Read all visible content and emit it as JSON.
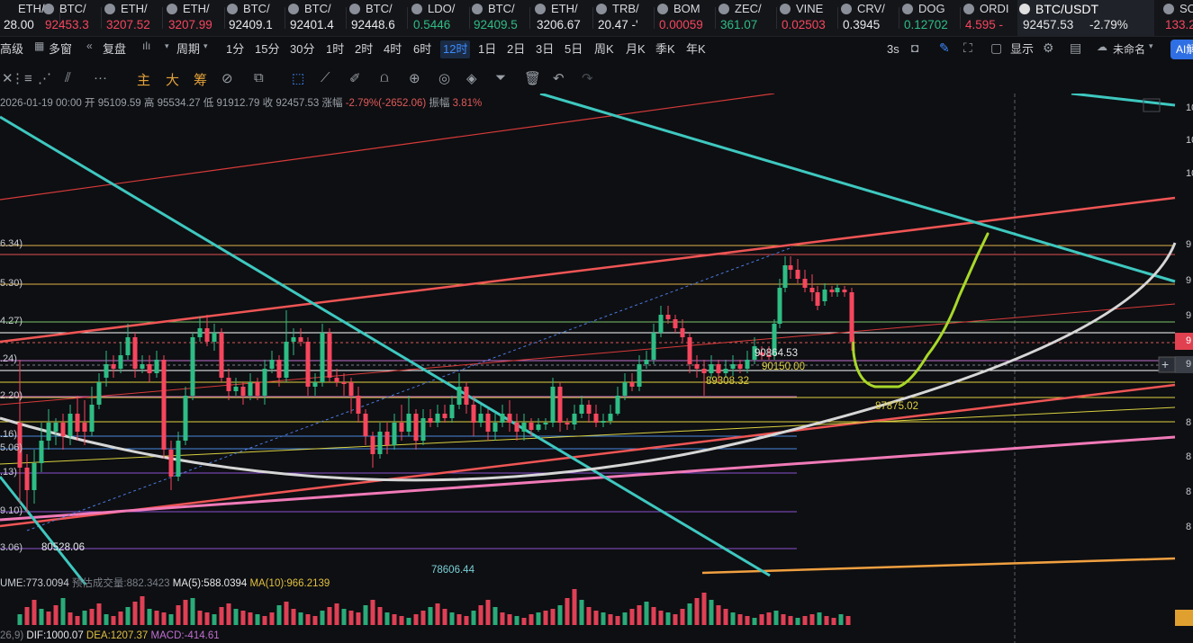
{
  "ticker": [
    {
      "symbol": "ETH/",
      "price": "28.00",
      "color": "wh"
    },
    {
      "symbol": "BTC/",
      "price": "92453.3",
      "color": "dn"
    },
    {
      "symbol": "ETH/",
      "price": "3207.52",
      "color": "dn"
    },
    {
      "symbol": "ETH/",
      "price": "3207.99",
      "color": "dn"
    },
    {
      "symbol": "BTC/",
      "price": "92409.1",
      "color": "wh"
    },
    {
      "symbol": "BTC/",
      "price": "92401.4",
      "color": "wh"
    },
    {
      "symbol": "BTC/",
      "price": "92448.6",
      "color": "wh"
    },
    {
      "symbol": "LDO/",
      "price": "0.5446",
      "color": "up"
    },
    {
      "symbol": "BTC/",
      "price": "92409.5",
      "color": "up"
    },
    {
      "symbol": "ETH/",
      "price": "3206.67",
      "color": "wh"
    },
    {
      "symbol": "TRB/",
      "price": "20.47 -'",
      "color": "wh"
    },
    {
      "symbol": "BOM",
      "price": "0.00059",
      "color": "dn"
    },
    {
      "symbol": "ZEC/",
      "price": "361.07",
      "color": "up"
    },
    {
      "symbol": "VINE",
      "price": "0.02503",
      "color": "dn"
    },
    {
      "symbol": "CRV/",
      "price": "0.3945",
      "color": "wh"
    },
    {
      "symbol": "DOG",
      "price": "0.12702",
      "color": "up"
    },
    {
      "symbol": "ORDI",
      "price": "4.595 -",
      "color": "dn"
    }
  ],
  "active_ticker": {
    "symbol": "BTC/USDT",
    "price": "92457.53",
    "change": "-2.79%"
  },
  "ticker_tail": {
    "symbol": "SO",
    "price": "133.2"
  },
  "toolbar1": {
    "items": [
      {
        "label": "高级",
        "active": false
      },
      {
        "label": "多窗",
        "active": false
      },
      {
        "label": "复盘",
        "active": false
      },
      {
        "label": "周期",
        "active": false
      },
      {
        "label": "1分",
        "active": false
      },
      {
        "label": "15分",
        "active": false
      },
      {
        "label": "30分",
        "active": false
      },
      {
        "label": "1时",
        "active": false
      },
      {
        "label": "2时",
        "active": false
      },
      {
        "label": "4时",
        "active": false
      },
      {
        "label": "6时",
        "active": false
      },
      {
        "label": "12时",
        "active": true
      },
      {
        "label": "1日",
        "active": false
      },
      {
        "label": "2日",
        "active": false
      },
      {
        "label": "3日",
        "active": false
      },
      {
        "label": "5日",
        "active": false
      },
      {
        "label": "周K",
        "active": false
      },
      {
        "label": "月K",
        "active": false
      },
      {
        "label": "季K",
        "active": false
      },
      {
        "label": "年K",
        "active": false
      }
    ],
    "refresh": "3s",
    "display": "显示",
    "layout_name": "未命名",
    "ai": "AI解"
  },
  "toolbar2": {
    "zhu": "主",
    "da": "大",
    "chou": "筹"
  },
  "ohlc": {
    "date": "2026-01-19 00:00",
    "open_lbl": "开",
    "open": "95109.59",
    "high_lbl": "高",
    "high": "95534.27",
    "low_lbl": "低",
    "low": "91912.79",
    "close_lbl": "收",
    "close": "92457.53",
    "chg_lbl": "涨幅",
    "chg": "-2.79%(-2652.06)",
    "amp_lbl": "振幅",
    "amp": "3.81%"
  },
  "left_levels": [
    "6.34)",
    "5.30)",
    "4.27)",
    ".24)",
    "2.20)",
    ".16)",
    "5.06)",
    ".13)",
    "9.10)",
    "3.06)"
  ],
  "annotations": {
    "a1": "90864.53",
    "a2": "90150.00",
    "a3": "89308.32",
    "a4": "87875.02",
    "a5": "80528.06",
    "a6": "78606.44"
  },
  "right_axis": [
    "10",
    "10",
    "10",
    "9",
    "9",
    "9",
    "9",
    "9",
    "8",
    "8",
    "8",
    "8"
  ],
  "volume": {
    "label": "UME:773.0094",
    "est": "预估成交量:882.3423",
    "ma5": "MA(5):588.0394",
    "ma10": "MA(10):966.2139"
  },
  "macd": {
    "params": "26,9)",
    "dif": "DIF:1000.07",
    "dea": "DEA:1207.37",
    "macd": "MACD:-414.61"
  }
}
